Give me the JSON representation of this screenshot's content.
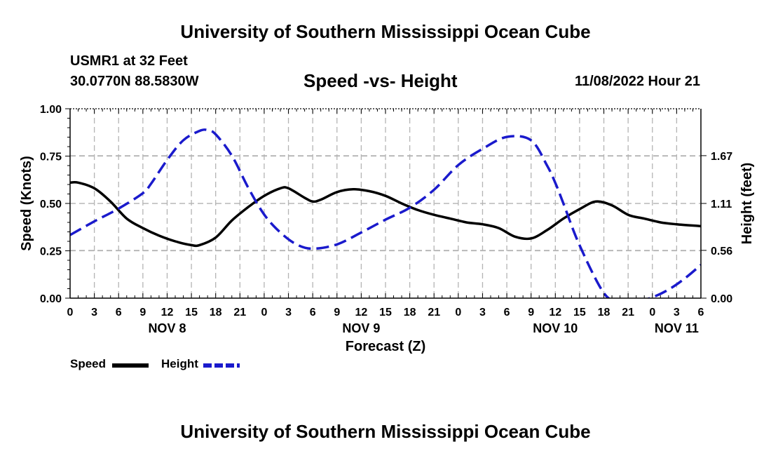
{
  "page": {
    "title_top": "University of Southern Mississippi Ocean Cube",
    "title_bottom": "University of Southern Mississippi Ocean Cube",
    "station": "USMR1 at 32 Feet",
    "coords": "30.0770N  88.5830W",
    "chart_title": "Speed -vs- Height",
    "datetime": "11/08/2022 Hour 21"
  },
  "legend": {
    "speed_label": "Speed",
    "height_label": "Height",
    "speed_color": "#000000",
    "height_color": "#1a1acc"
  },
  "chart_data": {
    "type": "line",
    "title": "Speed -vs- Height",
    "xlabel": "Forecast (Z)",
    "ylabel": "Speed (Knots)",
    "y2label": "Height (feet)",
    "x_unit": "hours since NOV 8 00Z",
    "xlim": [
      0,
      78
    ],
    "ylim": [
      0,
      1
    ],
    "y2lim": [
      0,
      2.22
    ],
    "x_ticks": [
      0,
      3,
      6,
      9,
      12,
      15,
      18,
      21,
      24,
      27,
      30,
      33,
      36,
      39,
      42,
      45,
      48,
      51,
      54,
      57,
      60,
      63,
      66,
      69,
      72,
      75,
      78
    ],
    "x_tick_labels": [
      "0",
      "3",
      "6",
      "9",
      "12",
      "15",
      "18",
      "21",
      "0",
      "3",
      "6",
      "9",
      "12",
      "15",
      "18",
      "21",
      "0",
      "3",
      "6",
      "9",
      "12",
      "15",
      "18",
      "21",
      "0",
      "3",
      "6"
    ],
    "y_ticks": [
      0,
      0.25,
      0.5,
      0.75,
      1.0
    ],
    "y_tick_labels": [
      "0.00",
      "0.25",
      "0.50",
      "0.75",
      "1.00"
    ],
    "y2_ticks": [
      0,
      0.56,
      1.11,
      1.67
    ],
    "y2_tick_labels": [
      "0.00",
      "0.56",
      "1.11",
      "1.67"
    ],
    "day_labels": [
      {
        "x": 12,
        "label": "NOV 8"
      },
      {
        "x": 36,
        "label": "NOV 9"
      },
      {
        "x": 60,
        "label": "NOV 10"
      },
      {
        "x": 75,
        "label": "NOV 11"
      }
    ],
    "grid": true,
    "series": [
      {
        "name": "Speed",
        "axis": "left",
        "color": "#000000",
        "dash": "solid",
        "x": [
          0,
          1,
          3,
          5,
          7,
          9,
          11,
          13,
          15,
          16,
          18,
          20,
          22,
          24,
          26,
          27,
          29,
          30,
          31,
          33,
          35,
          37,
          39,
          41,
          43,
          45,
          47,
          49,
          51,
          53,
          55,
          57,
          59,
          61,
          63,
          65,
          67,
          69,
          71,
          73,
          75,
          78
        ],
        "values": [
          0.61,
          0.61,
          0.58,
          0.51,
          0.42,
          0.37,
          0.33,
          0.3,
          0.28,
          0.28,
          0.32,
          0.41,
          0.48,
          0.54,
          0.58,
          0.58,
          0.53,
          0.51,
          0.52,
          0.56,
          0.575,
          0.565,
          0.54,
          0.5,
          0.465,
          0.44,
          0.42,
          0.4,
          0.39,
          0.37,
          0.325,
          0.315,
          0.36,
          0.42,
          0.47,
          0.51,
          0.49,
          0.44,
          0.42,
          0.4,
          0.39,
          0.38
        ]
      },
      {
        "name": "Height",
        "axis": "right",
        "color": "#1a1acc",
        "dash": "dashed",
        "x": [
          0,
          3,
          6,
          9,
          10,
          12,
          14,
          16,
          17,
          18,
          20,
          22,
          24,
          26,
          28,
          30,
          33,
          36,
          39,
          42,
          45,
          48,
          51,
          54,
          57,
          59,
          60,
          61,
          63,
          66,
          68,
          70,
          72,
          74,
          76,
          78
        ],
        "values": [
          0.74,
          0.9,
          1.05,
          1.23,
          1.34,
          1.62,
          1.85,
          1.96,
          1.97,
          1.92,
          1.67,
          1.3,
          0.98,
          0.77,
          0.63,
          0.58,
          0.63,
          0.77,
          0.92,
          1.06,
          1.27,
          1.56,
          1.75,
          1.89,
          1.85,
          1.55,
          1.35,
          1.11,
          0.62,
          0.06,
          -0.04,
          -0.04,
          0.01,
          0.1,
          0.23,
          0.39
        ]
      }
    ]
  }
}
